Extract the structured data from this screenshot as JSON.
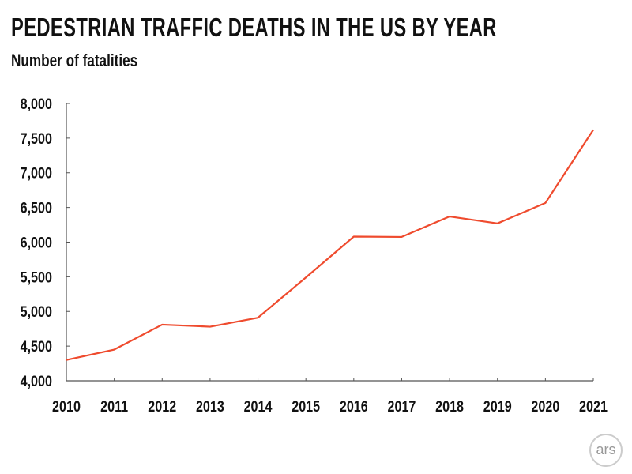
{
  "chart_data": {
    "type": "line",
    "title": "PEDESTRIAN TRAFFIC DEATHS IN THE US BY YEAR",
    "subtitle": "Number of fatalities",
    "xlabel": "",
    "ylabel": "",
    "x": [
      "2010",
      "2011",
      "2012",
      "2013",
      "2014",
      "2015",
      "2016",
      "2017",
      "2018",
      "2019",
      "2020",
      "2021"
    ],
    "series": [
      {
        "values": [
          4300,
          4450,
          4810,
          4780,
          4910,
          5490,
          6080,
          6075,
          6370,
          6270,
          6565,
          7620
        ],
        "color": "#ef4b2e"
      }
    ],
    "ylim": [
      4000,
      8000
    ],
    "yticks": [
      "4,000",
      "4,500",
      "5,000",
      "5,500",
      "6,000",
      "6,500",
      "7,000",
      "7,500",
      "8,000"
    ],
    "grid": false,
    "legend": "none"
  },
  "logo": "ars"
}
